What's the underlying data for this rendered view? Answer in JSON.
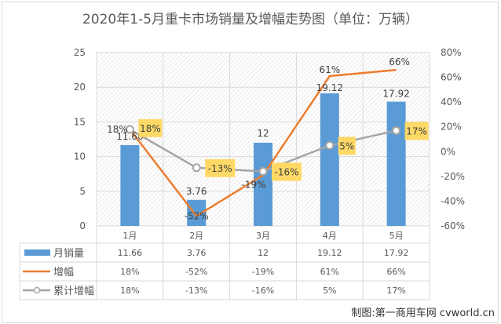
{
  "title": "2020年1-5月重卡市场销量及增幅走势图（单位：万辆）",
  "credit": "制图:第一商用车网 cvworld.cn",
  "colors": {
    "bar": "#5B9BD5",
    "growth_line": "#ED7D31",
    "cumulative_line": "#A5A5A5",
    "callout_bg": "#FFD966",
    "grid": "#d9d9d9",
    "text": "#595959"
  },
  "chart_data": {
    "type": "bar+line",
    "title": "2020年1-5月重卡市场销量及增幅走势图（单位：万辆）",
    "categories": [
      "1月",
      "2月",
      "3月",
      "4月",
      "5月"
    ],
    "series": [
      {
        "name": "月销量",
        "type": "bar",
        "axis": "left",
        "values": [
          11.66,
          3.76,
          12,
          19.12,
          17.92
        ],
        "labels": [
          "11.66",
          "3.76",
          "12",
          "19.12",
          "17.92"
        ]
      },
      {
        "name": "增幅",
        "type": "line",
        "axis": "right",
        "values": [
          18,
          -52,
          -19,
          61,
          66
        ],
        "labels": [
          "18%",
          "-52%",
          "-19%",
          "61%",
          "66%"
        ]
      },
      {
        "name": "累计增幅",
        "type": "line-marker",
        "axis": "right",
        "values": [
          18,
          -13,
          -16,
          5,
          17
        ],
        "labels": [
          "18%",
          "-13%",
          "-16%",
          "5%",
          "17%"
        ]
      }
    ],
    "left_axis": {
      "min": 0,
      "max": 25,
      "ticks": [
        "0",
        "5",
        "10",
        "15",
        "20",
        "25"
      ]
    },
    "right_axis": {
      "min": -60,
      "max": 80,
      "ticks": [
        "-60%",
        "-40%",
        "-20%",
        "0%",
        "20%",
        "40%",
        "60%",
        "80%"
      ]
    },
    "grid": true,
    "legend_position": "data-table-bottom"
  },
  "table": {
    "header": [
      "1月",
      "2月",
      "3月",
      "4月",
      "5月"
    ],
    "rows": [
      {
        "legend": "月销量",
        "cells": [
          "11.66",
          "3.76",
          "12",
          "19.12",
          "17.92"
        ]
      },
      {
        "legend": "增幅",
        "cells": [
          "18%",
          "-52%",
          "-19%",
          "61%",
          "66%"
        ]
      },
      {
        "legend": "累计增幅",
        "cells": [
          "18%",
          "-13%",
          "-16%",
          "5%",
          "17%"
        ]
      }
    ]
  }
}
